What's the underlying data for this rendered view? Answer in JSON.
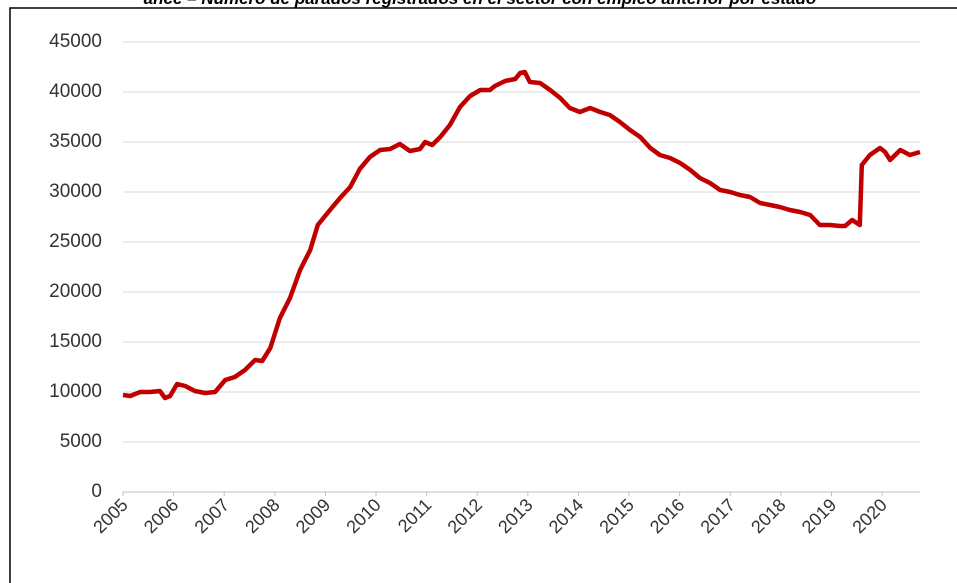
{
  "chart_data": {
    "type": "line",
    "title": "ance – Número de parados registrados en el sector con empleo anterior por estado",
    "x": [
      2005.0,
      2005.14,
      2005.34,
      2005.53,
      2005.73,
      2005.83,
      2005.93,
      2006.07,
      2006.23,
      2006.42,
      2006.62,
      2006.82,
      2007.02,
      2007.21,
      2007.41,
      2007.61,
      2007.75,
      2007.91,
      2008.1,
      2008.3,
      2008.5,
      2008.7,
      2008.85,
      2009.09,
      2009.29,
      2009.49,
      2009.68,
      2009.88,
      2010.08,
      2010.28,
      2010.47,
      2010.67,
      2010.87,
      2010.97,
      2011.11,
      2011.27,
      2011.46,
      2011.66,
      2011.86,
      2012.06,
      2012.25,
      2012.35,
      2012.55,
      2012.75,
      2012.85,
      2012.94,
      2013.04,
      2013.24,
      2013.44,
      2013.64,
      2013.83,
      2014.03,
      2014.23,
      2014.43,
      2014.62,
      2014.82,
      2015.02,
      2015.22,
      2015.42,
      2015.61,
      2015.81,
      2016.01,
      2016.21,
      2016.4,
      2016.6,
      2016.8,
      2017.0,
      2017.19,
      2017.39,
      2017.59,
      2017.79,
      2017.98,
      2018.18,
      2018.38,
      2018.58,
      2018.77,
      2018.97,
      2019.17,
      2019.27,
      2019.41,
      2019.56,
      2019.6,
      2019.76,
      2019.96,
      2020.06,
      2020.16,
      2020.36,
      2020.55,
      2020.75
    ],
    "series": [
      {
        "color": "#c00000",
        "values": [
          9700,
          9600,
          10000,
          10000,
          10100,
          9400,
          9600,
          10800,
          10600,
          10100,
          9900,
          10000,
          11200,
          11500,
          12200,
          13200,
          13100,
          14400,
          17400,
          19400,
          22200,
          24200,
          26700,
          28200,
          29400,
          30500,
          32300,
          33500,
          34200,
          34300,
          34800,
          34100,
          34300,
          35000,
          34700,
          35500,
          36700,
          38500,
          39600,
          40200,
          40200,
          40600,
          41100,
          41300,
          41900,
          42000,
          41000,
          40900,
          40200,
          39400,
          38400,
          38000,
          38400,
          38000,
          37700,
          37000,
          36200,
          35500,
          34400,
          33700,
          33400,
          32900,
          32200,
          31400,
          30900,
          30200,
          30000,
          29700,
          29500,
          28900,
          28700,
          28500,
          28200,
          28000,
          27700,
          26700,
          26700,
          26600,
          26600,
          27200,
          26700,
          32700,
          33700,
          34400,
          34000,
          33200,
          34200,
          33700,
          34000
        ]
      }
    ],
    "xlim": [
      2005,
      2020.75
    ],
    "xticks": [
      2005,
      2006,
      2007,
      2008,
      2009,
      2010,
      2011,
      2012,
      2013,
      2014,
      2015,
      2016,
      2017,
      2018,
      2019,
      2020
    ],
    "ylim": [
      0,
      45000
    ],
    "yticks": [
      0,
      5000,
      10000,
      15000,
      20000,
      25000,
      30000,
      35000,
      40000,
      45000
    ],
    "grid": true
  }
}
